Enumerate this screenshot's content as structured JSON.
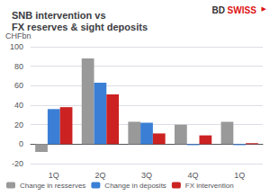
{
  "chart_data": {
    "type": "bar",
    "title": "SNB intervention vs\nFX reserves & sight deposits",
    "ylabel": "CHFbn",
    "categories": [
      "1Q",
      "2Q",
      "3Q",
      "4Q",
      "1Q"
    ],
    "series": [
      {
        "name": "Change in resserves",
        "color": "#999999",
        "values": [
          -8,
          88,
          23,
          20,
          23
        ]
      },
      {
        "name": "Change in deposits",
        "color": "#3a7fd5",
        "values": [
          36,
          63,
          22,
          -1,
          -1
        ]
      },
      {
        "name": "FX intervention",
        "color": "#cc2222",
        "values": [
          38,
          51,
          11,
          9,
          1
        ]
      }
    ],
    "ylim": [
      -20,
      100
    ],
    "yticks": [
      -20,
      0,
      20,
      40,
      60,
      80,
      100
    ],
    "grid": true,
    "legend": "lower left",
    "annotations": [
      {
        "text": "BD",
        "color": "#333333"
      },
      {
        "text": "SWISS",
        "color": "#dd1111"
      },
      {
        "text": "▶",
        "color": "#dd1111"
      }
    ]
  }
}
